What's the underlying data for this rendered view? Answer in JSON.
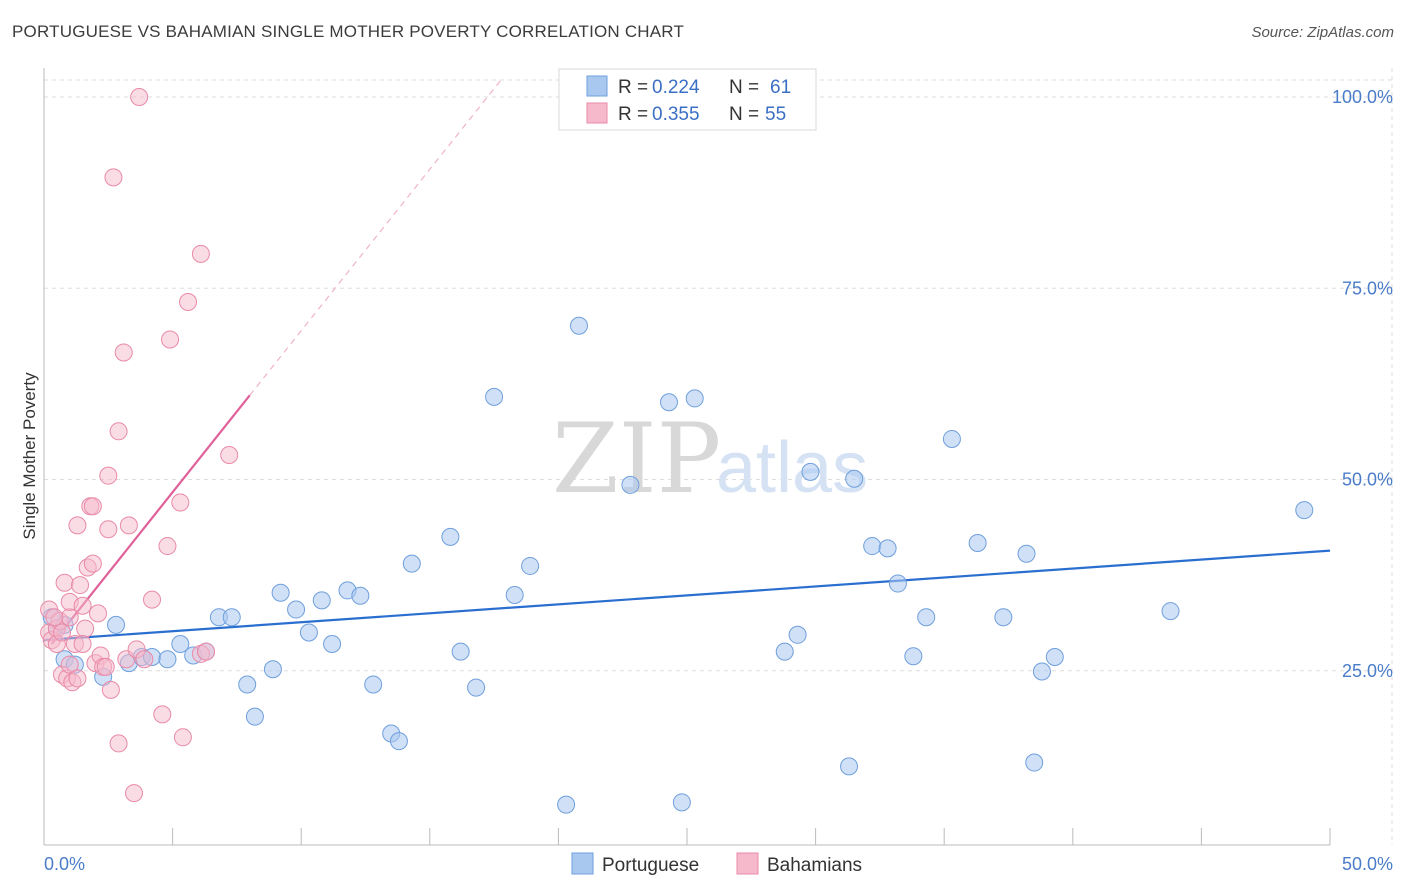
{
  "header": {
    "title": "PORTUGUESE VS BAHAMIAN SINGLE MOTHER POVERTY CORRELATION CHART",
    "source": "Source: ZipAtlas.com"
  },
  "watermark": {
    "zip": "ZIP",
    "atlas": "atlas"
  },
  "colors": {
    "portuguese_fill": "#a9c8f0",
    "portuguese_stroke": "#6f9fdc",
    "portuguese_line": "#2a6fd0",
    "bahamian_fill": "#f6b9cb",
    "bahamian_stroke": "#e98aa8",
    "bahamian_line": "#e0609a",
    "tick_label": "#4a7cc8",
    "grid": "#dddddd"
  },
  "legend": {
    "rows": [
      {
        "r_label": "R =",
        "r_value": "0.224",
        "n_label": "N =",
        "n_value": "61"
      },
      {
        "r_label": "R =",
        "r_value": "0.355",
        "n_label": "N =",
        "n_value": "55"
      }
    ]
  },
  "chart_data": {
    "type": "scatter",
    "title": "PORTUGUESE VS BAHAMIAN SINGLE MOTHER POVERTY CORRELATION CHART",
    "xlabel": "",
    "ylabel": "Single Mother Poverty",
    "xlim": [
      0,
      50
    ],
    "ylim": [
      0,
      100
    ],
    "x_tick_labels": [
      "0.0%",
      "50.0%"
    ],
    "y_tick_labels": [
      "25.0%",
      "50.0%",
      "75.0%",
      "100.0%"
    ],
    "y_ticks": [
      25,
      50,
      75,
      100
    ],
    "grid": true,
    "legend_position": "top-center",
    "series": [
      {
        "name": "Portuguese",
        "trend": {
          "x": [
            0,
            50
          ],
          "y": [
            29.0,
            40.7
          ]
        },
        "points": [
          [
            0.3,
            32
          ],
          [
            0.5,
            30.5
          ],
          [
            0.8,
            31
          ],
          [
            0.8,
            26.5
          ],
          [
            1.2,
            25.8
          ],
          [
            2.3,
            24.2
          ],
          [
            2.8,
            31
          ],
          [
            3.3,
            26
          ],
          [
            3.8,
            26.8
          ],
          [
            4.2,
            26.8
          ],
          [
            4.8,
            26.5
          ],
          [
            5.3,
            28.5
          ],
          [
            5.8,
            27
          ],
          [
            6.3,
            27.5
          ],
          [
            6.8,
            32
          ],
          [
            7.3,
            32
          ],
          [
            7.9,
            23.2
          ],
          [
            8.2,
            19
          ],
          [
            8.9,
            25.2
          ],
          [
            9.2,
            35.2
          ],
          [
            9.8,
            33
          ],
          [
            10.3,
            30
          ],
          [
            10.8,
            34.2
          ],
          [
            11.2,
            28.5
          ],
          [
            11.8,
            35.5
          ],
          [
            12.3,
            34.8
          ],
          [
            12.8,
            23.2
          ],
          [
            13.5,
            16.8
          ],
          [
            13.8,
            15.8
          ],
          [
            14.3,
            39
          ],
          [
            15.8,
            42.5
          ],
          [
            16.2,
            27.5
          ],
          [
            16.8,
            22.8
          ],
          [
            17.5,
            60.8
          ],
          [
            18.3,
            34.9
          ],
          [
            18.9,
            38.7
          ],
          [
            20.3,
            7.5
          ],
          [
            20.8,
            70.1
          ],
          [
            22.8,
            49.3
          ],
          [
            24.3,
            60.1
          ],
          [
            24.8,
            7.8
          ],
          [
            25.3,
            60.6
          ],
          [
            28.8,
            27.5
          ],
          [
            29.3,
            29.7
          ],
          [
            29.8,
            51
          ],
          [
            31.3,
            12.5
          ],
          [
            31.5,
            50.1
          ],
          [
            32.2,
            41.3
          ],
          [
            32.8,
            41
          ],
          [
            33.2,
            36.4
          ],
          [
            33.8,
            26.9
          ],
          [
            34.3,
            32
          ],
          [
            35.3,
            55.3
          ],
          [
            36.3,
            41.7
          ],
          [
            37.3,
            32
          ],
          [
            38.2,
            40.3
          ],
          [
            38.5,
            13
          ],
          [
            38.8,
            24.9
          ],
          [
            39.3,
            26.8
          ],
          [
            43.8,
            32.8
          ],
          [
            49.0,
            46
          ]
        ]
      },
      {
        "name": "Bahamians",
        "trend": {
          "x": [
            0.3,
            8.0
          ],
          "y": [
            28.5,
            61
          ]
        },
        "points": [
          [
            0.2,
            33
          ],
          [
            0.2,
            30
          ],
          [
            0.3,
            29
          ],
          [
            0.5,
            30.5
          ],
          [
            0.5,
            28.5
          ],
          [
            0.6,
            31.5
          ],
          [
            0.7,
            24.5
          ],
          [
            0.8,
            36.5
          ],
          [
            0.9,
            24
          ],
          [
            1.0,
            32
          ],
          [
            1.0,
            34
          ],
          [
            1.1,
            23.5
          ],
          [
            1.2,
            28.5
          ],
          [
            1.3,
            44
          ],
          [
            1.4,
            36.2
          ],
          [
            1.5,
            33.5
          ],
          [
            1.6,
            30.5
          ],
          [
            1.7,
            38.5
          ],
          [
            1.8,
            46.5
          ],
          [
            1.9,
            46.5
          ],
          [
            1.9,
            39
          ],
          [
            2.0,
            26
          ],
          [
            2.1,
            32.5
          ],
          [
            2.2,
            27
          ],
          [
            2.3,
            25.5
          ],
          [
            2.5,
            50.5
          ],
          [
            2.5,
            43.5
          ],
          [
            2.6,
            22.5
          ],
          [
            2.7,
            89.5
          ],
          [
            2.9,
            56.3
          ],
          [
            2.9,
            15.5
          ],
          [
            3.1,
            66.6
          ],
          [
            3.2,
            26.5
          ],
          [
            3.3,
            44
          ],
          [
            3.5,
            9
          ],
          [
            3.6,
            27.8
          ],
          [
            3.7,
            100
          ],
          [
            3.9,
            26.5
          ],
          [
            4.2,
            34.3
          ],
          [
            4.6,
            19.3
          ],
          [
            4.8,
            41.3
          ],
          [
            4.9,
            68.3
          ],
          [
            5.3,
            47
          ],
          [
            5.4,
            16.3
          ],
          [
            5.6,
            73.2
          ],
          [
            6.1,
            27.2
          ],
          [
            6.3,
            27.5
          ],
          [
            6.1,
            79.5
          ],
          [
            7.2,
            53.2
          ],
          [
            0.4,
            32
          ],
          [
            0.7,
            30
          ],
          [
            1.0,
            25.8
          ],
          [
            1.3,
            24
          ],
          [
            1.5,
            28.5
          ],
          [
            2.4,
            25.5
          ]
        ]
      }
    ]
  },
  "bottom_legend": [
    {
      "label": "Portuguese"
    },
    {
      "label": "Bahamians"
    }
  ]
}
